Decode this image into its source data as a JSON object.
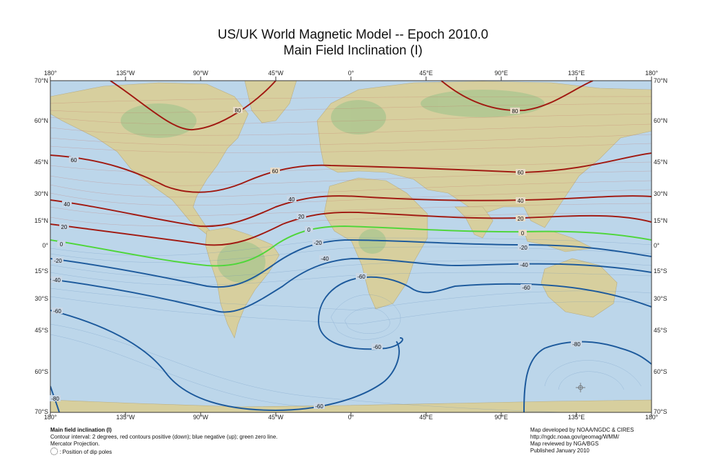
{
  "title": {
    "line1": "US/UK World Magnetic Model -- Epoch 2010.0",
    "line2": "Main Field Inclination (I)"
  },
  "map": {
    "projection": "Mercator Projection.",
    "longitude_labels": [
      "180°",
      "135°W",
      "90°W",
      "45°W",
      "0°",
      "45°E",
      "90°E",
      "135°E",
      "180°"
    ],
    "latitude_labels_left": [
      "70°N",
      "60°N",
      "45°N",
      "30°N",
      "15°N",
      "0°",
      "15°S",
      "30°S",
      "45°S",
      "60°S",
      "70°S"
    ],
    "latitude_labels_right": [
      "70°N",
      "60°N",
      "45°N",
      "30°N",
      "15°N",
      "0°",
      "15°S",
      "30°S",
      "45°S",
      "60°S",
      "70°S"
    ],
    "colors": {
      "positive_contour": "#a11a12",
      "negative_contour": "#1d5a9c",
      "zero_contour": "#4fd63a",
      "ocean": "#bcd6ea",
      "land": "#d7cf9e",
      "land_green": "#a9c58f"
    },
    "contour_labels": {
      "pos80_a": "80",
      "pos80_b": "80",
      "pos60_a": "60",
      "pos60_b": "60",
      "pos60_c": "60",
      "pos40_a": "40",
      "pos40_b": "40",
      "pos40_c": "40",
      "pos20_a": "20",
      "pos20_b": "20",
      "pos20_c": "20",
      "zero_a": "0",
      "zero_b": "0",
      "zero_c": "0",
      "neg20_a": "-20",
      "neg20_b": "-20",
      "neg20_c": "-20",
      "neg40_a": "-40",
      "neg40_b": "-40",
      "neg40_c": "-40",
      "neg60_a": "-60",
      "neg60_b": "-60",
      "neg60_c": "-60",
      "neg60_d": "-60",
      "neg60_e": "-60",
      "neg80_a": "-80",
      "neg80_b": "-80"
    }
  },
  "footer": {
    "left": {
      "heading": "Main field inclination (I)",
      "line1": "Contour interval: 2 degrees, red contours positive (down); blue negative (up); green zero line.",
      "line2": "Mercator Projection.",
      "line3": ": Position of dip poles"
    },
    "right": {
      "line1": "Map developed by NOAA/NGDC & CIRES",
      "line2": "http://ngdc.noaa.gov/geomag/WMM/",
      "line3": "Map reviewed by NGA/BGS",
      "line4": "Published January 2010"
    }
  }
}
